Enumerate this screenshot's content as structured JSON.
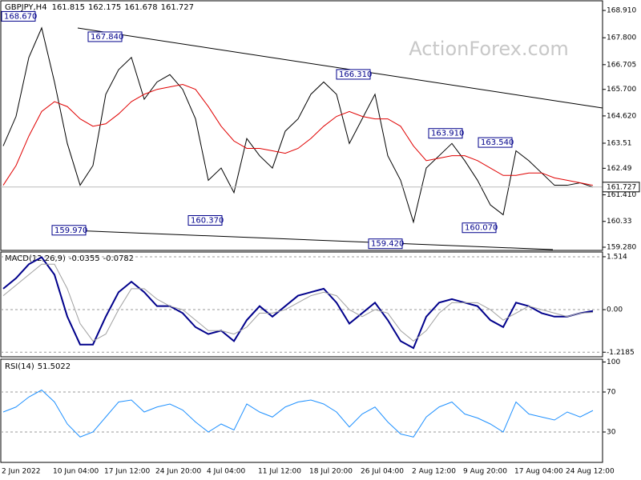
{
  "chart_data": [
    {
      "type": "line",
      "symbol": "GBPJPY,H4",
      "open": 161.815,
      "high": 162.175,
      "low": 161.678,
      "close": 161.727,
      "watermark": "ActionForex.com",
      "ylim": [
        159.15,
        169.27
      ],
      "yticks": [
        {
          "value": 168.91,
          "label": "168.910"
        },
        {
          "value": 167.8,
          "label": "167.800"
        },
        166.705,
        {
          "value": 165.7,
          "label": "165.700"
        },
        {
          "value": 164.62,
          "label": "164.620"
        },
        163.51,
        162.49,
        {
          "value": 161.41,
          "label": "161.410"
        },
        160.33,
        {
          "value": 159.28,
          "label": "159.280"
        }
      ],
      "series": [
        {
          "color": "#000000",
          "values": [
            163.4,
            164.6,
            167.0,
            168.2,
            166.0,
            163.5,
            161.8,
            162.6,
            165.5,
            166.5,
            167.0,
            165.3,
            166.0,
            166.3,
            165.7,
            164.5,
            162.0,
            162.5,
            161.5,
            163.7,
            163.0,
            162.5,
            164.0,
            164.5,
            165.5,
            166.0,
            165.5,
            163.5,
            164.5,
            165.5,
            163.0,
            162.0,
            160.3,
            162.5,
            163.0,
            163.5,
            162.8,
            162.0,
            161.0,
            160.6,
            163.2,
            162.8,
            162.3,
            161.8,
            161.8,
            161.9,
            161.727
          ]
        },
        {
          "color": "#e00000",
          "values": [
            161.8,
            162.6,
            163.8,
            164.8,
            165.2,
            165.0,
            164.5,
            164.2,
            164.3,
            164.7,
            165.2,
            165.5,
            165.7,
            165.8,
            165.9,
            165.7,
            165.0,
            164.2,
            163.6,
            163.3,
            163.3,
            163.2,
            163.1,
            163.3,
            163.7,
            164.2,
            164.6,
            164.8,
            164.6,
            164.5,
            164.5,
            164.2,
            163.4,
            162.8,
            162.9,
            163.0,
            163.0,
            162.8,
            162.5,
            162.2,
            162.2,
            162.3,
            162.3,
            162.1,
            162.0,
            161.9,
            161.8
          ]
        }
      ],
      "annotations": [
        {
          "value": 168.67,
          "label": "168.670"
        },
        {
          "value": 167.84,
          "label": "167.840"
        },
        {
          "value": 166.31,
          "label": "166.310"
        },
        {
          "value": 163.91,
          "label": "163.910"
        },
        {
          "value": 163.54,
          "label": "163.540"
        },
        {
          "value": 159.97,
          "label": "159.970"
        },
        {
          "value": 160.37,
          "label": "160.370"
        },
        {
          "value": 159.42,
          "label": "159.420"
        },
        {
          "value": 160.07,
          "label": "160.070"
        }
      ]
    },
    {
      "type": "line",
      "name": "MACD(12,26,9)",
      "macd": -0.0355,
      "signal": -0.0782,
      "ylim": [
        -1.35,
        1.65
      ],
      "yticks": [
        1.514,
        {
          "value": 0,
          "label": "0.00"
        },
        -1.2185
      ],
      "series": [
        {
          "color": "#00008b",
          "values": [
            0.6,
            0.9,
            1.3,
            1.5,
            1.0,
            -0.2,
            -1.0,
            -1.0,
            -0.2,
            0.5,
            0.8,
            0.5,
            0.1,
            0.1,
            -0.1,
            -0.5,
            -0.7,
            -0.6,
            -0.9,
            -0.3,
            0.1,
            -0.2,
            0.1,
            0.4,
            0.5,
            0.6,
            0.2,
            -0.4,
            -0.1,
            0.2,
            -0.3,
            -0.9,
            -1.1,
            -0.2,
            0.2,
            0.3,
            0.2,
            0.1,
            -0.3,
            -0.5,
            0.2,
            0.1,
            -0.1,
            -0.2,
            -0.2,
            -0.1,
            -0.04
          ]
        },
        {
          "color": "#a0a0a0",
          "values": [
            0.4,
            0.7,
            1.0,
            1.3,
            1.3,
            0.6,
            -0.4,
            -0.9,
            -0.7,
            0.0,
            0.6,
            0.6,
            0.3,
            0.1,
            0.0,
            -0.3,
            -0.6,
            -0.6,
            -0.7,
            -0.5,
            -0.1,
            -0.1,
            0.0,
            0.2,
            0.4,
            0.5,
            0.4,
            0.0,
            -0.2,
            0.0,
            -0.1,
            -0.6,
            -0.9,
            -0.6,
            -0.1,
            0.2,
            0.2,
            0.2,
            0.0,
            -0.3,
            -0.1,
            0.1,
            0.0,
            -0.1,
            -0.2,
            -0.1,
            -0.08
          ]
        }
      ]
    },
    {
      "type": "line",
      "name": "RSI(14)",
      "rsi": 51.5022,
      "ylim": [
        0,
        100
      ],
      "yticks": [
        100,
        70,
        30
      ],
      "categories": [
        "2 Jun 2022",
        null,
        null,
        null,
        "10 Jun 04:00",
        null,
        null,
        null,
        "17 Jun 12:00",
        null,
        null,
        null,
        "24 Jun 20:00",
        null,
        null,
        null,
        "4 Jul 04:00",
        null,
        null,
        null,
        "11 Jul 12:00",
        null,
        null,
        null,
        "18 Jul 20:00",
        null,
        null,
        null,
        "26 Jul 04:00",
        null,
        null,
        null,
        "2 Aug 12:00",
        null,
        null,
        null,
        "9 Aug 20:00",
        null,
        null,
        null,
        "17 Aug 04:00",
        null,
        null,
        null,
        "24 Aug 12:00",
        null,
        null
      ],
      "series": [
        {
          "color": "#1e90ff",
          "values": [
            50,
            55,
            65,
            72,
            60,
            38,
            25,
            30,
            45,
            60,
            62,
            50,
            55,
            58,
            52,
            40,
            30,
            38,
            32,
            58,
            50,
            45,
            55,
            60,
            62,
            58,
            50,
            35,
            48,
            55,
            40,
            28,
            25,
            45,
            55,
            60,
            48,
            44,
            38,
            30,
            60,
            48,
            45,
            42,
            50,
            45,
            51.5022
          ]
        }
      ]
    }
  ]
}
